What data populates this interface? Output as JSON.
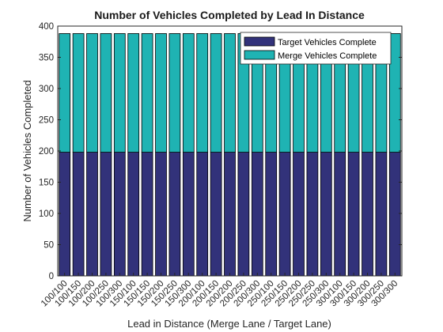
{
  "chart_data": {
    "type": "bar",
    "stacked": true,
    "title": "Number of Vehicles Completed by Lead In Distance",
    "xlabel": "Lead in Distance (Merge Lane / Target Lane)",
    "ylabel": "Number of Vehicles Completed",
    "ylim": [
      0,
      400
    ],
    "yticks": [
      0,
      50,
      100,
      150,
      200,
      250,
      300,
      350,
      400
    ],
    "grid": false,
    "legend_position": "top-right",
    "categories": [
      "100/100",
      "100/150",
      "100/200",
      "100/250",
      "100/300",
      "150/100",
      "150/150",
      "150/200",
      "150/250",
      "150/300",
      "200/100",
      "200/150",
      "200/200",
      "200/250",
      "200/300",
      "250/100",
      "250/150",
      "250/200",
      "250/250",
      "250/300",
      "300/100",
      "300/150",
      "300/200",
      "300/250",
      "300/300"
    ],
    "series": [
      {
        "name": "Target Vehicles Complete",
        "color": "#32327a",
        "values": [
          198,
          198,
          198,
          198,
          198,
          198,
          198,
          198,
          198,
          198,
          198,
          198,
          198,
          198,
          198,
          198,
          198,
          198,
          198,
          198,
          198,
          198,
          198,
          198,
          198
        ]
      },
      {
        "name": "Merge Vehicles Complete",
        "color": "#1fb3b3",
        "values": [
          190,
          190,
          190,
          190,
          190,
          190,
          190,
          190,
          190,
          190,
          190,
          190,
          190,
          190,
          190,
          190,
          190,
          190,
          190,
          190,
          190,
          190,
          190,
          190,
          190
        ]
      }
    ]
  }
}
